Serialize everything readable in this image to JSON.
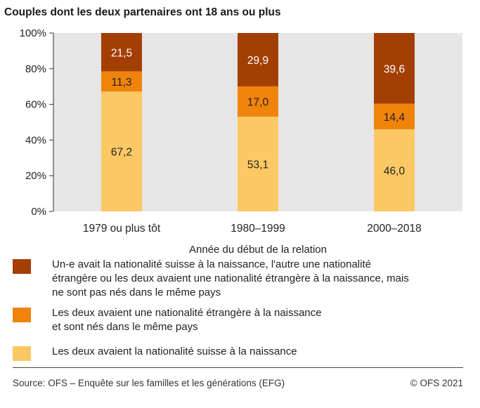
{
  "title": "Couples dont les deux partenaires ont 18 ans ou plus",
  "chart_data": {
    "type": "bar",
    "stacked": true,
    "categories": [
      "1979 ou plus tôt",
      "1980–1999",
      "2000–2018"
    ],
    "series": [
      {
        "values": [
          67.2,
          53.1,
          46.0
        ],
        "labels": [
          "67,2",
          "53,1",
          "46,0"
        ],
        "color": "#fcc864"
      },
      {
        "values": [
          11.3,
          17.0,
          14.4
        ],
        "labels": [
          "11,3",
          "17,0",
          "14,4"
        ],
        "color": "#f0830a"
      },
      {
        "values": [
          21.5,
          29.9,
          39.6
        ],
        "labels": [
          "21,5",
          "29,9",
          "39,6"
        ],
        "color": "#a33f05"
      }
    ],
    "xlabel": "Année du début de la relation",
    "ylabel": "",
    "ylim": [
      0,
      100
    ],
    "yticks": [
      "0%",
      "20%",
      "40%",
      "60%",
      "80%",
      "100%"
    ],
    "grid": false,
    "plot_background": "#e6e6e6"
  },
  "legend": [
    {
      "color": "#a33f05",
      "lines": [
        "Un-e avait la nationalité suisse à la naissance, l'autre une nationalité",
        "étrangère ou les deux avaient une nationalité étrangère à la naissance, mais",
        "ne sont pas nés dans le même pays"
      ]
    },
    {
      "color": "#f0830a",
      "lines": [
        "Les deux avaient une nationalité étrangère à la naissance",
        "et sont nés dans le même pays"
      ]
    },
    {
      "color": "#fcc864",
      "lines": [
        "Les deux avaient la nationalité suisse à la naissance"
      ]
    }
  ],
  "footer": {
    "source": "Source: OFS – Enquête sur les familles et les générations (EFG)",
    "copyright": "© OFS 2021"
  }
}
